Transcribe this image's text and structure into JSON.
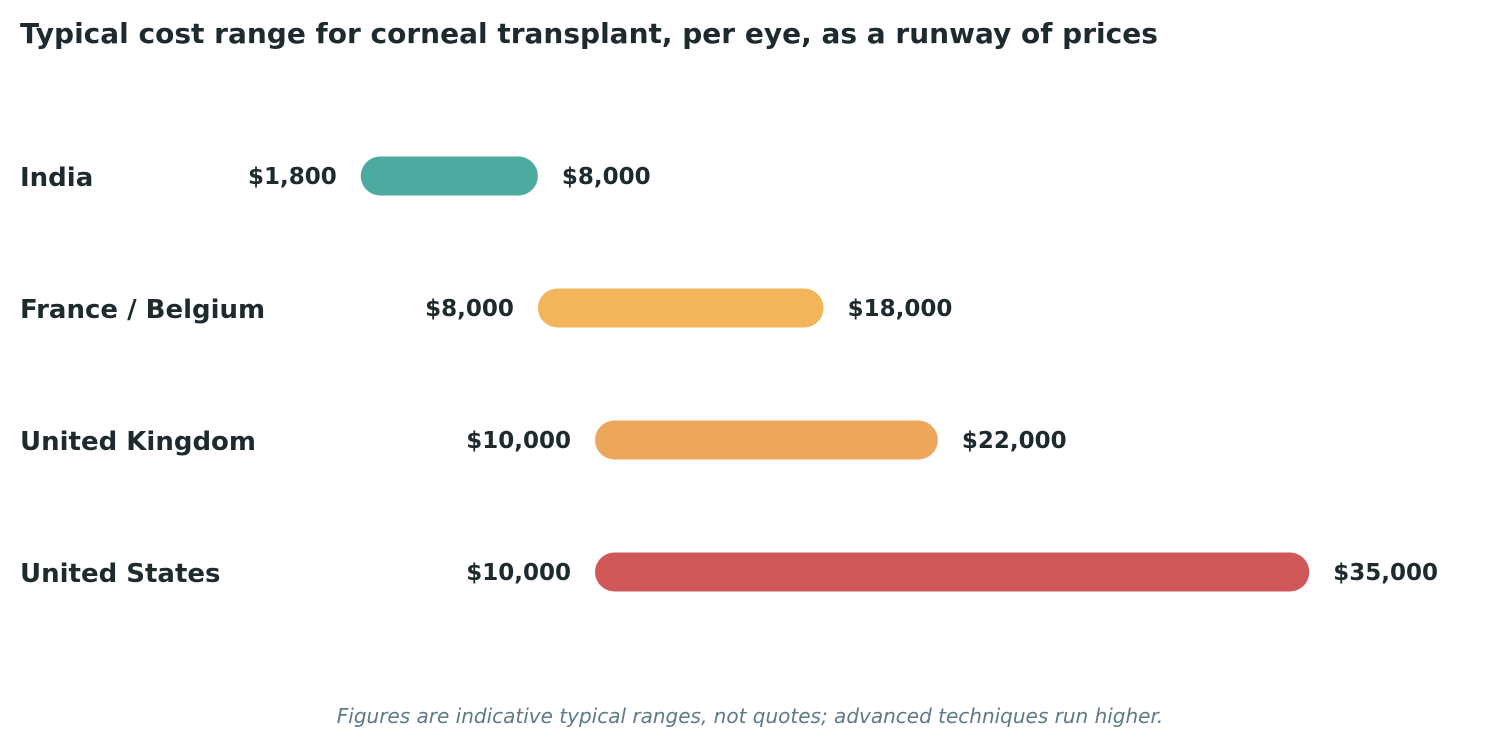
{
  "chart_data": {
    "type": "bar",
    "subtype": "range",
    "title": "Typical cost range for corneal transplant, per eye, as a runway of prices",
    "footnote": "Figures are indicative typical ranges, not quotes; advanced techniques run higher.",
    "currency_symbol": "$",
    "categories": [
      "India",
      "France / Belgium",
      "United Kingdom",
      "United States"
    ],
    "series": [
      {
        "low": [
          1800,
          8000,
          10000,
          10000
        ],
        "high": [
          8000,
          18000,
          22000,
          35000
        ]
      }
    ],
    "bar_colors": [
      "#4daaa0",
      "#f3b55b",
      "#eca75b",
      "#d05858"
    ],
    "grid": false,
    "legend": "none"
  },
  "colors": {
    "text": "#1f2a2e",
    "footnote": "#5f7a87",
    "background": "#ffffff"
  }
}
